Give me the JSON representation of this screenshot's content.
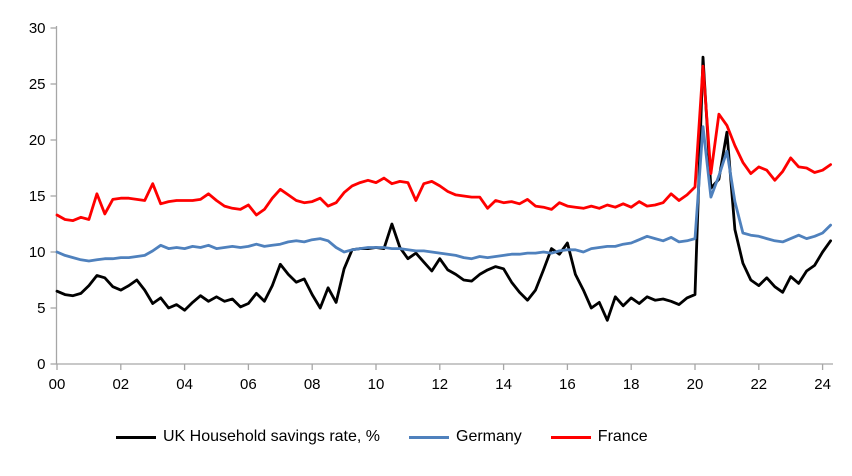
{
  "chart_data": {
    "type": "line",
    "title": "",
    "legend_position": "bottom",
    "grid": false,
    "x_axis": {
      "start_year": 2000,
      "step_years": 0.25,
      "tick_years": [
        2000,
        2002,
        2004,
        2006,
        2008,
        2010,
        2012,
        2014,
        2016,
        2018,
        2020,
        2022,
        2024
      ],
      "tick_labels": [
        "00",
        "02",
        "04",
        "06",
        "08",
        "10",
        "12",
        "14",
        "16",
        "18",
        "20",
        "22",
        "24"
      ]
    },
    "y_axis": {
      "min": 0,
      "max": 30,
      "ticks": [
        0,
        5,
        10,
        15,
        20,
        25,
        30
      ],
      "tick_labels": [
        "0",
        "5",
        "10",
        "15",
        "20",
        "25",
        "30"
      ]
    },
    "colors": {
      "axis": "#A6A6A6",
      "text": "#000000"
    },
    "series": [
      {
        "name": "UK Household savings rate, %",
        "color": "#000000",
        "values": [
          6.5,
          6.2,
          6.1,
          6.3,
          7.0,
          7.9,
          7.7,
          6.9,
          6.6,
          7.0,
          7.5,
          6.6,
          5.4,
          5.9,
          5.0,
          5.3,
          4.8,
          5.5,
          6.1,
          5.6,
          6.0,
          5.6,
          5.8,
          5.1,
          5.4,
          6.3,
          5.6,
          7.0,
          8.9,
          8.0,
          7.3,
          7.6,
          6.2,
          5.0,
          6.8,
          5.5,
          8.5,
          10.2,
          10.3,
          10.3,
          10.4,
          10.3,
          12.5,
          10.4,
          9.4,
          9.9,
          9.1,
          8.3,
          9.4,
          8.4,
          8.0,
          7.5,
          7.4,
          8.0,
          8.4,
          8.7,
          8.5,
          7.3,
          6.4,
          5.7,
          6.6,
          8.4,
          10.3,
          9.8,
          10.8,
          8.0,
          6.6,
          5.0,
          5.5,
          3.9,
          6.0,
          5.2,
          5.9,
          5.4,
          6.0,
          5.7,
          5.8,
          5.6,
          5.3,
          5.9,
          6.2,
          27.4,
          15.7,
          16.5,
          20.7,
          12.0,
          9.0,
          7.5,
          7.0,
          7.7,
          6.9,
          6.4,
          7.8,
          7.2,
          8.3,
          8.8,
          10.0,
          11.0
        ]
      },
      {
        "name": "Germany",
        "color": "#4F81BD",
        "values": [
          10.0,
          9.7,
          9.5,
          9.3,
          9.2,
          9.3,
          9.4,
          9.4,
          9.5,
          9.5,
          9.6,
          9.7,
          10.1,
          10.6,
          10.3,
          10.4,
          10.3,
          10.5,
          10.4,
          10.6,
          10.3,
          10.4,
          10.5,
          10.4,
          10.5,
          10.7,
          10.5,
          10.6,
          10.7,
          10.9,
          11.0,
          10.9,
          11.1,
          11.2,
          11.0,
          10.4,
          10.0,
          10.2,
          10.3,
          10.4,
          10.4,
          10.4,
          10.3,
          10.3,
          10.2,
          10.1,
          10.1,
          10.0,
          9.9,
          9.8,
          9.7,
          9.5,
          9.4,
          9.6,
          9.5,
          9.6,
          9.7,
          9.8,
          9.8,
          9.9,
          9.9,
          10.0,
          9.9,
          10.1,
          10.2,
          10.2,
          10.0,
          10.3,
          10.4,
          10.5,
          10.5,
          10.7,
          10.8,
          11.1,
          11.4,
          11.2,
          11.0,
          11.3,
          10.9,
          11.0,
          11.2,
          21.2,
          14.9,
          16.8,
          19.0,
          14.5,
          11.7,
          11.5,
          11.4,
          11.2,
          11.0,
          10.9,
          11.2,
          11.5,
          11.2,
          11.4,
          11.7,
          12.4
        ]
      },
      {
        "name": "France",
        "color": "#FF0000",
        "values": [
          13.3,
          12.9,
          12.8,
          13.1,
          12.9,
          15.2,
          13.4,
          14.7,
          14.8,
          14.8,
          14.7,
          14.6,
          16.1,
          14.3,
          14.5,
          14.6,
          14.6,
          14.6,
          14.7,
          15.2,
          14.6,
          14.1,
          13.9,
          13.8,
          14.2,
          13.3,
          13.8,
          14.8,
          15.6,
          15.1,
          14.6,
          14.4,
          14.5,
          14.8,
          14.1,
          14.4,
          15.3,
          15.9,
          16.2,
          16.4,
          16.2,
          16.6,
          16.1,
          16.3,
          16.2,
          14.6,
          16.1,
          16.3,
          15.9,
          15.4,
          15.1,
          15.0,
          14.9,
          14.9,
          13.9,
          14.6,
          14.4,
          14.5,
          14.3,
          14.7,
          14.1,
          14.0,
          13.8,
          14.4,
          14.1,
          14.0,
          13.9,
          14.1,
          13.9,
          14.2,
          14.0,
          14.3,
          14.0,
          14.5,
          14.1,
          14.2,
          14.4,
          15.2,
          14.6,
          15.1,
          15.8,
          26.6,
          17.0,
          22.3,
          21.3,
          19.5,
          18.0,
          17.0,
          17.6,
          17.3,
          16.4,
          17.2,
          18.4,
          17.6,
          17.5,
          17.1,
          17.3,
          17.8
        ]
      }
    ]
  }
}
